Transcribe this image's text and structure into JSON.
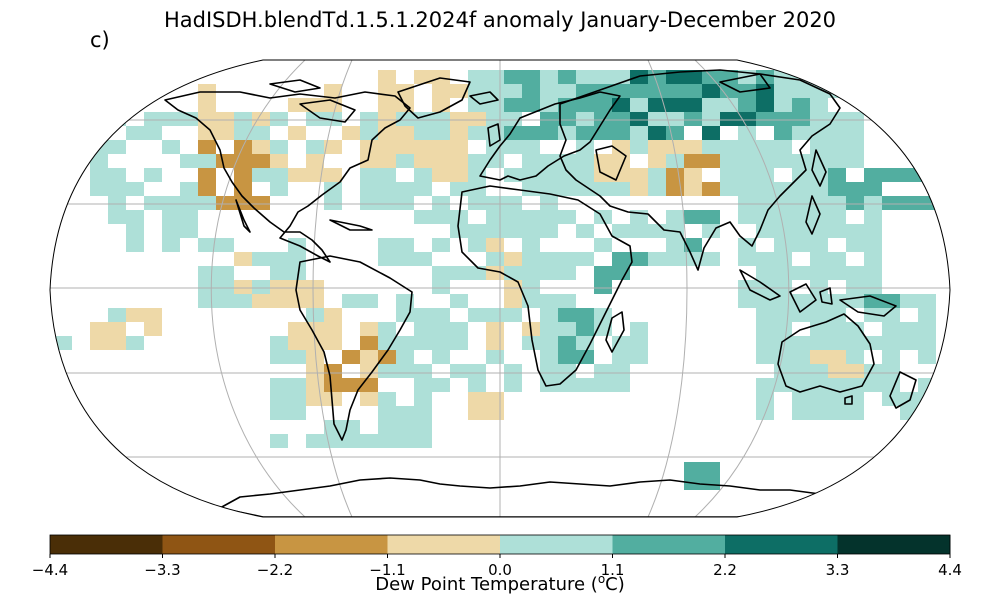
{
  "title": "HadISDH.blendTd.1.5.1.2024f anomaly January-December 2020",
  "panel_label": "c)",
  "colorbar": {
    "label_prefix": "Dew Point Temperature (",
    "label_sup": "o",
    "label_suffix": "C)",
    "ticks": [
      "−4.4",
      "−3.3",
      "−2.2",
      "−1.1",
      "0.0",
      "1.1",
      "2.2",
      "3.3",
      "4.4"
    ],
    "colors": [
      "#4a2e07",
      "#8f5514",
      "#c89542",
      "#eed9a8",
      "#aee0d8",
      "#52aea0",
      "#0d6e65",
      "#04332c"
    ]
  },
  "chart_data": {
    "type": "heatmap",
    "projection": "Robinson",
    "variable": "Dew Point Temperature anomaly",
    "units": "oC",
    "period": "January-December 2020",
    "vmin": -4.4,
    "vmax": 4.4,
    "levels": [
      -4.4,
      -3.3,
      -2.2,
      -1.1,
      0.0,
      1.1,
      2.2,
      3.3,
      4.4
    ],
    "grid": true,
    "coastlines": true
  }
}
